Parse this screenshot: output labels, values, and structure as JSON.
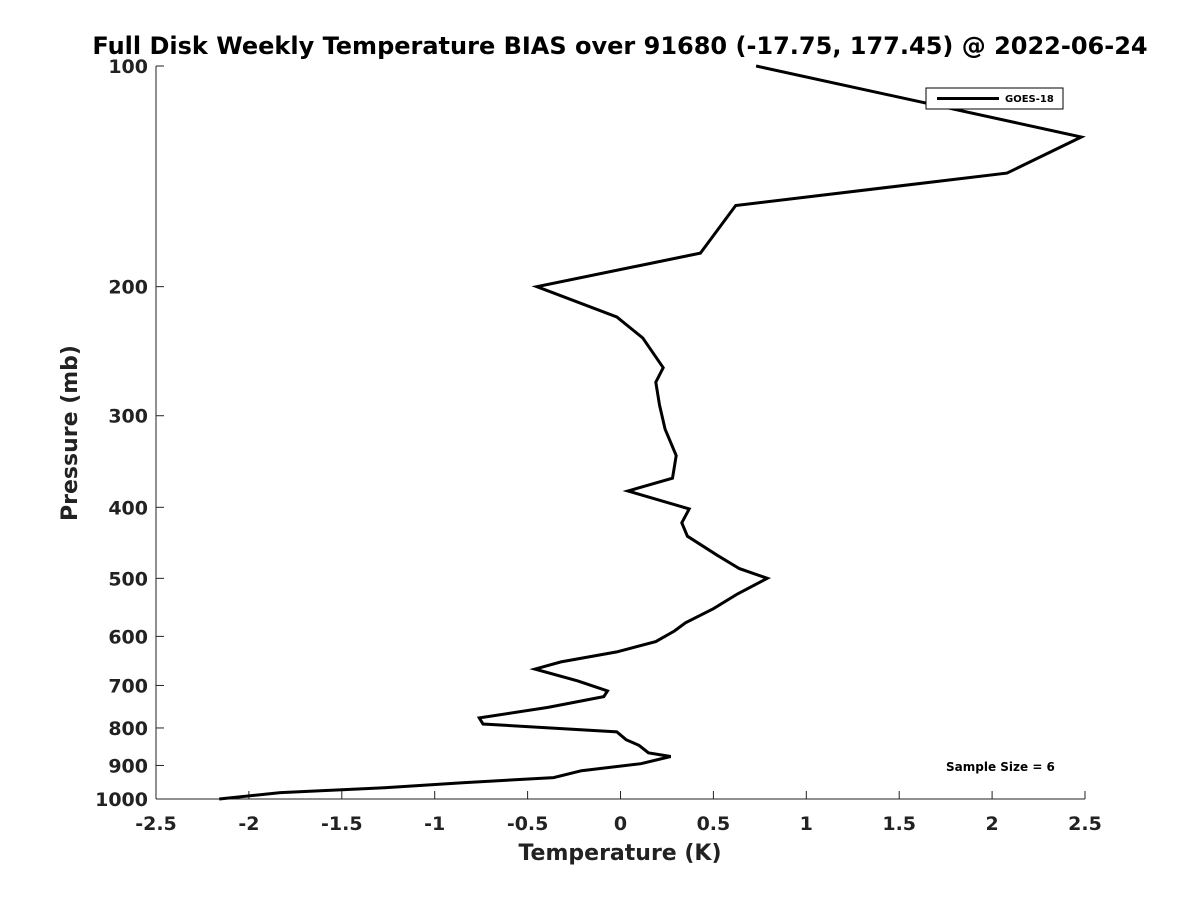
{
  "chart_data": {
    "type": "line",
    "title": "Full Disk Weekly Temperature BIAS over 91680 (-17.75, 177.45) @ 2022-06-24",
    "xlabel": "Temperature (K)",
    "ylabel": "Pressure (mb)",
    "xlim": [
      -2.5,
      2.5
    ],
    "ylim": [
      100,
      1000
    ],
    "y_scale": "log",
    "y_reversed": true,
    "x_ticks": [
      -2.5,
      -2,
      -1.5,
      -1,
      -0.5,
      0,
      0.5,
      1,
      1.5,
      2,
      2.5
    ],
    "x_tick_labels": [
      "-2.5",
      "-2",
      "-1.5",
      "-1",
      "-0.5",
      "0",
      "0.5",
      "1",
      "1.5",
      "2",
      "2.5"
    ],
    "y_ticks": [
      100,
      200,
      300,
      400,
      500,
      600,
      700,
      800,
      900,
      1000
    ],
    "y_tick_labels": [
      "100",
      "200",
      "300",
      "400",
      "500",
      "600",
      "700",
      "800",
      "900",
      "1000"
    ],
    "grid": false,
    "legend_position": "top-right",
    "series": [
      {
        "name": "GOES-18",
        "color": "#000000",
        "x": [
          0.73,
          2.48,
          2.08,
          0.62,
          0.43,
          -0.45,
          -0.02,
          0.12,
          0.23,
          0.19,
          0.21,
          0.24,
          0.3,
          0.28,
          0.04,
          0.37,
          0.33,
          0.36,
          0.52,
          0.64,
          0.79,
          0.63,
          0.5,
          0.35,
          0.29,
          0.19,
          -0.02,
          -0.32,
          -0.46,
          -0.23,
          -0.07,
          -0.09,
          -0.39,
          -0.76,
          -0.74,
          -0.02,
          0.03,
          0.1,
          0.15,
          0.27,
          0.11,
          -0.21,
          -0.36,
          -0.85,
          -1.27,
          -1.83,
          -2.16
        ],
        "y": [
          100,
          125,
          140,
          155,
          180,
          200,
          220,
          235,
          258,
          270,
          290,
          313,
          340,
          365,
          380,
          402,
          420,
          438,
          465,
          485,
          500,
          525,
          550,
          575,
          590,
          610,
          630,
          650,
          665,
          690,
          712,
          725,
          750,
          775,
          790,
          810,
          830,
          845,
          865,
          875,
          895,
          915,
          935,
          950,
          965,
          980,
          1000
        ]
      }
    ],
    "annotations": [
      "Sample Size = 6"
    ]
  }
}
